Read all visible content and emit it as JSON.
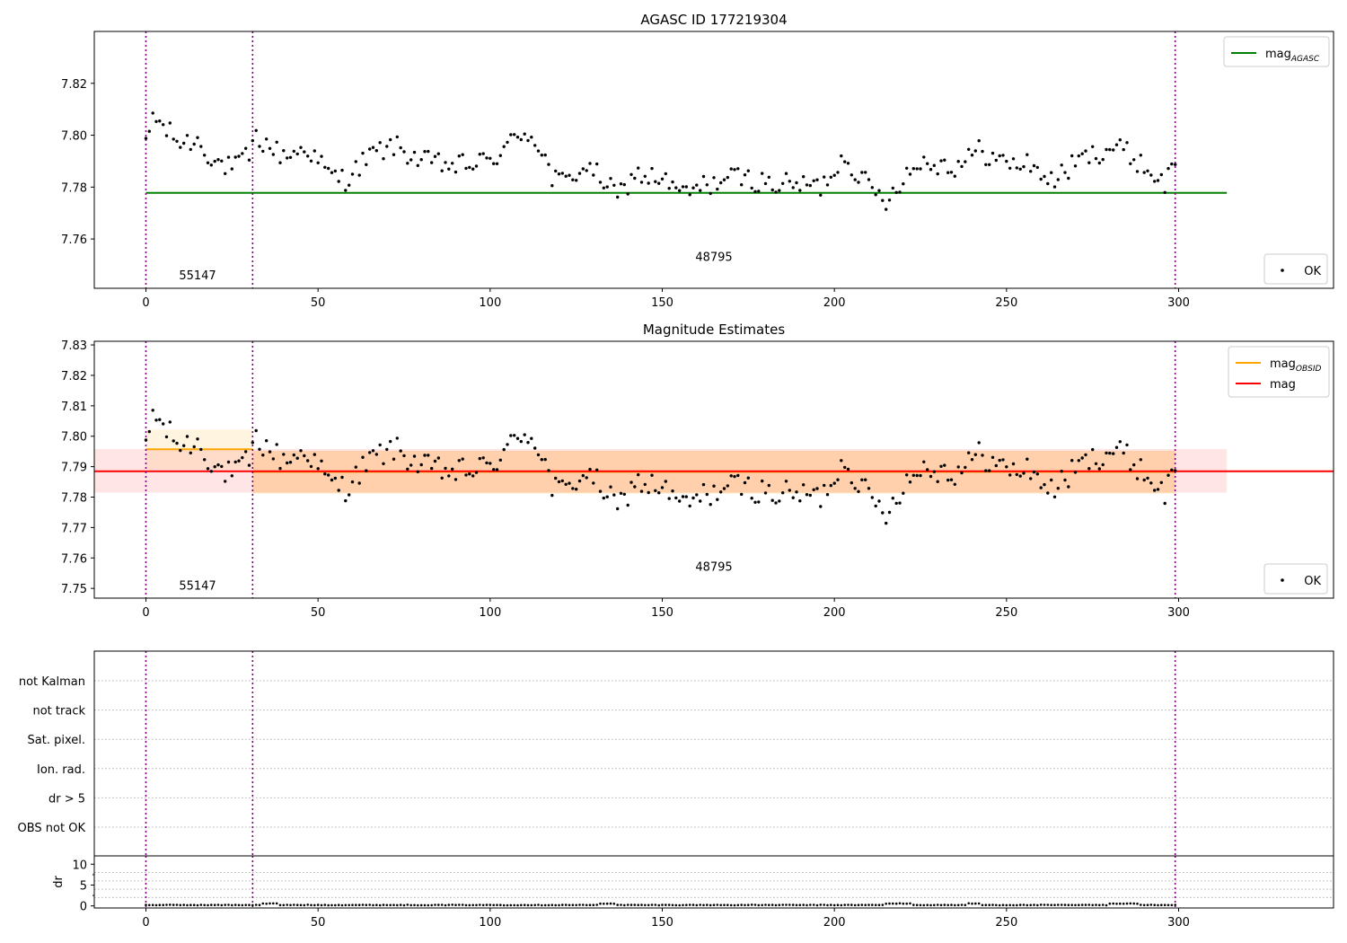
{
  "chart_data": [
    {
      "type": "scatter",
      "title": "AGASC ID 177219304",
      "xlim": [
        -15,
        345
      ],
      "ylim": [
        7.741,
        7.84
      ],
      "xticks": [
        0,
        50,
        100,
        150,
        200,
        250,
        300
      ],
      "yticks": [
        7.76,
        7.78,
        7.8,
        7.82
      ],
      "ytick_labels": [
        "7.76",
        "7.78",
        "7.80",
        "7.82"
      ],
      "obs_boundaries": [
        0,
        31,
        299
      ],
      "obs_labels": [
        {
          "x": 15,
          "y": 7.7445,
          "text": "55147"
        },
        {
          "x": 165,
          "y": 7.7515,
          "text": "48795"
        }
      ],
      "lines": [
        {
          "name": "mag",
          "sub": "AGASC",
          "y": 7.7778,
          "x0": 0,
          "x1": 314,
          "color": "#008000"
        }
      ],
      "legend_upper": [
        {
          "label": "mag",
          "sub": "AGASC",
          "color": "#008000"
        }
      ],
      "legend_lower": [
        {
          "label": "OK"
        }
      ],
      "series": [
        {
          "name": "OK",
          "color": "#000000",
          "shape": "magnitude-points"
        }
      ]
    },
    {
      "type": "scatter",
      "title": "Magnitude Estimates",
      "xlim": [
        -15,
        345
      ],
      "ylim": [
        7.7468,
        7.8312
      ],
      "xticks": [
        0,
        50,
        100,
        150,
        200,
        250,
        300
      ],
      "yticks": [
        7.75,
        7.76,
        7.77,
        7.78,
        7.79,
        7.8,
        7.81,
        7.82,
        7.83
      ],
      "ytick_labels": [
        "7.75",
        "7.76",
        "7.77",
        "7.78",
        "7.79",
        "7.80",
        "7.81",
        "7.82",
        "7.83"
      ],
      "obs_boundaries": [
        0,
        31,
        299
      ],
      "obs_labels": [
        {
          "x": 15,
          "y": 7.7496,
          "text": "55147"
        },
        {
          "x": 165,
          "y": 7.7558,
          "text": "48795"
        }
      ],
      "lines": [
        {
          "name": "mag",
          "sub": "OBSID",
          "y": 7.7957,
          "x0": 0,
          "x1": 31,
          "color": "#FFA500"
        },
        {
          "name": "mag",
          "sub": "OBSID",
          "y": 7.7883,
          "x0": 31,
          "x1": 299,
          "color": "#FFA500"
        },
        {
          "name": "mag",
          "sub": "",
          "y": 7.7885,
          "x0": -15,
          "x1": 345,
          "color": "#FF0000"
        }
      ],
      "bands": [
        {
          "x0": 0,
          "x1": 31,
          "y0": 7.7892,
          "y1": 7.8022,
          "color": "#FFA500",
          "opacity": 0.12
        },
        {
          "x0": 31,
          "x1": 299,
          "y0": 7.7812,
          "y1": 7.7952,
          "color": "#FFA500",
          "opacity": 0.25
        },
        {
          "x0": -15,
          "x1": 314,
          "y0": 7.7815,
          "y1": 7.7958,
          "color": "#FF0000",
          "opacity": 0.1
        }
      ],
      "legend_upper": [
        {
          "label": "mag",
          "sub": "OBSID",
          "color": "#FFA500"
        },
        {
          "label": "mag",
          "sub": "",
          "color": "#FF0000"
        }
      ],
      "legend_lower": [
        {
          "label": "OK"
        }
      ],
      "series": [
        {
          "name": "OK",
          "color": "#000000",
          "shape": "magnitude-points"
        }
      ]
    },
    {
      "type": "scatter",
      "title": "",
      "xlim": [
        -15,
        345
      ],
      "flag_labels": [
        "not Kalman",
        "not track",
        "Sat. pixel.",
        "Ion. rad.",
        "dr > 5",
        "OBS not OK"
      ],
      "obs_boundaries": [
        0,
        31,
        299
      ]
    },
    {
      "type": "scatter",
      "title": "",
      "ylabel": "dr",
      "xlim": [
        -15,
        345
      ],
      "ylim": [
        -0.5,
        12
      ],
      "xticks": [
        0,
        50,
        100,
        150,
        200,
        250,
        300
      ],
      "yticks": [
        0,
        5,
        10
      ],
      "ytick_labels": [
        "0",
        "5",
        "10"
      ],
      "obs_boundaries": [
        0,
        31,
        299
      ],
      "series": [
        {
          "name": "dr",
          "color": "#000000",
          "shape": "dr-points"
        }
      ]
    }
  ]
}
